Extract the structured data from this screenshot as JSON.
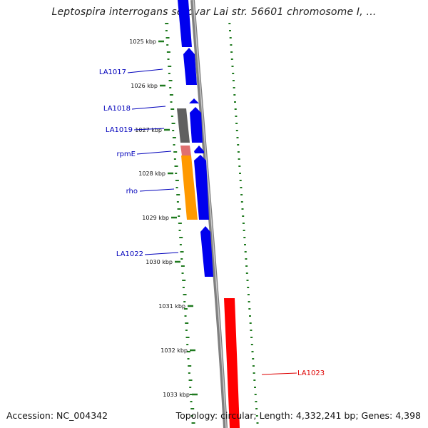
{
  "title": "Leptospira interrogans serovar Lai str. 56601 chromosome I, ...",
  "footer": {
    "accession": "Accession: NC_004342",
    "summary": "Topology: circular; Length: 4,332,241 bp; Genes: 4,398"
  },
  "ticks": [
    "1025 kbp",
    "1026 kbp",
    "1027 kbp",
    "1028 kbp",
    "1029 kbp",
    "1030 kbp",
    "1031 kbp",
    "1032 kbp",
    "1033 kbp"
  ],
  "genes": [
    {
      "name": "LA1017",
      "color": "#0000bb"
    },
    {
      "name": "LA1018",
      "color": "#0000bb"
    },
    {
      "name": "LA1019",
      "color": "#0000bb"
    },
    {
      "name": "rpmE",
      "color": "#0000bb"
    },
    {
      "name": "rho",
      "color": "#0000bb"
    },
    {
      "name": "LA1022",
      "color": "#0000bb"
    },
    {
      "name": "LA1023",
      "color": "#dd0000"
    }
  ],
  "colors": {
    "cds_forward": "#0000ee",
    "cds_reverse": "#ff0000",
    "backbone": "#808080",
    "gene_grey": "#606060",
    "rrna": "#e07070",
    "orange": "#ff9900",
    "gc_marks": "#1f7a1f"
  }
}
